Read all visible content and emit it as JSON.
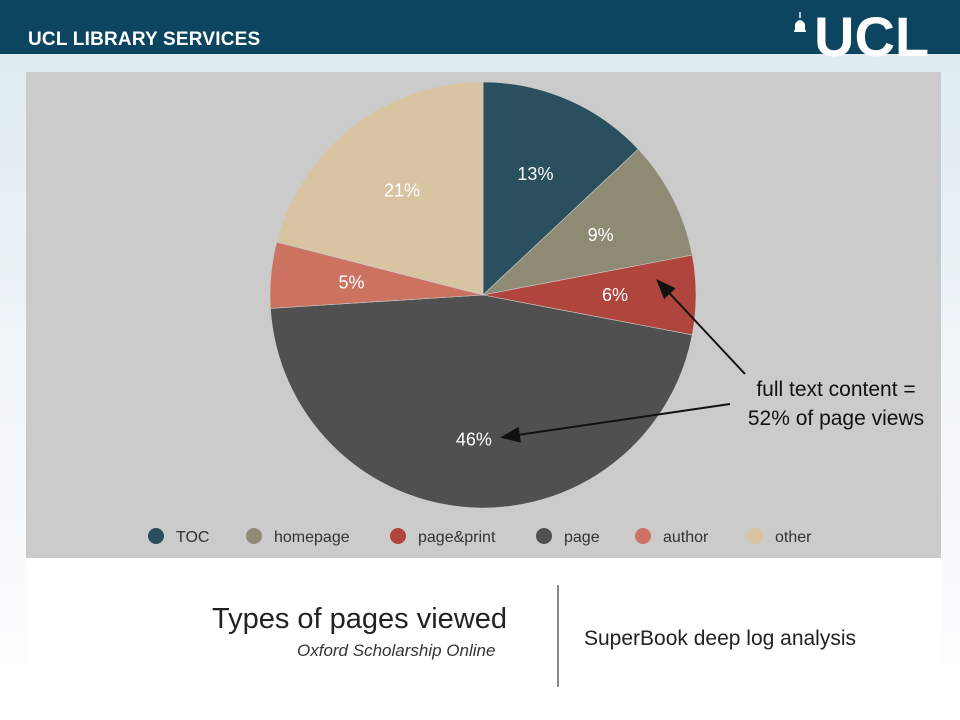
{
  "header": {
    "org_name": "UCL LIBRARY SERVICES",
    "logo_text": "UCL"
  },
  "slide": {
    "title": "Types of pages viewed",
    "subtitle": "Oxford Scholarship Online",
    "right_caption": "SuperBook deep log analysis"
  },
  "chart_data": {
    "type": "pie",
    "slices": [
      {
        "name": "TOC",
        "value": 13,
        "label": "13%",
        "color": "#2a4f5e"
      },
      {
        "name": "homepage",
        "value": 9,
        "label": "9%",
        "color": "#8e8a73"
      },
      {
        "name": "page&print",
        "value": 6,
        "label": "6%",
        "color": "#b0453d"
      },
      {
        "name": "page",
        "value": 46,
        "label": "46%",
        "color": "#505050"
      },
      {
        "name": "author",
        "value": 5,
        "label": "5%",
        "color": "#cc7260"
      },
      {
        "name": "other",
        "value": 21,
        "label": "21%",
        "color": "#d8c3a3"
      }
    ],
    "legend": [
      "TOC",
      "homepage",
      "page&print",
      "page",
      "author",
      "other"
    ],
    "legend_position": "bottom",
    "annotation": {
      "line1": "full text content =",
      "line2": "52% of page views",
      "points_to": [
        "page&print",
        "page"
      ]
    }
  }
}
